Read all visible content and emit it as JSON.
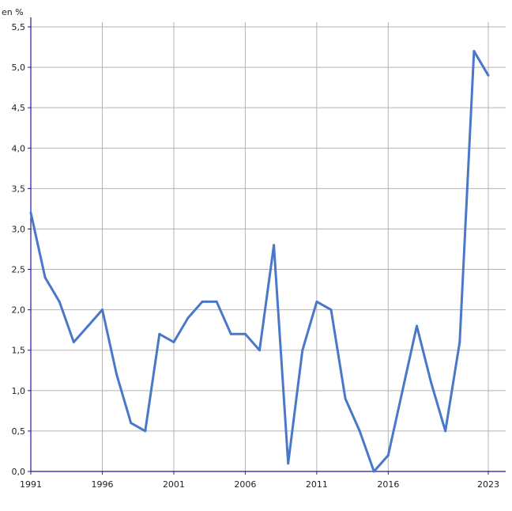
{
  "chart_data": {
    "type": "line",
    "ylabel": "en %",
    "x": [
      1991,
      1992,
      1993,
      1994,
      1995,
      1996,
      1997,
      1998,
      1999,
      2000,
      2001,
      2002,
      2003,
      2004,
      2005,
      2006,
      2007,
      2008,
      2009,
      2010,
      2011,
      2012,
      2013,
      2014,
      2015,
      2016,
      2017,
      2018,
      2019,
      2020,
      2021,
      2022,
      2023
    ],
    "series": [
      {
        "name": "",
        "color": "#4a78c8",
        "values": [
          3.2,
          2.4,
          2.1,
          1.6,
          1.8,
          2.0,
          1.2,
          0.6,
          0.5,
          1.7,
          1.6,
          1.9,
          2.1,
          2.1,
          1.7,
          1.7,
          1.5,
          2.8,
          0.1,
          1.5,
          2.1,
          2.0,
          0.9,
          0.5,
          0.0,
          0.2,
          1.0,
          1.8,
          1.1,
          0.5,
          1.6,
          5.2,
          4.9
        ]
      }
    ],
    "xticks": [
      1991,
      1996,
      2001,
      2006,
      2011,
      2016,
      2023
    ],
    "xtick_labels": [
      "1991",
      "1996",
      "2001",
      "2006",
      "2011",
      "2016",
      "2023"
    ],
    "yticks": [
      0,
      0.5,
      1,
      1.5,
      2,
      2.5,
      3,
      3.5,
      4,
      4.5,
      5,
      5.5
    ],
    "ytick_labels": [
      "0,0",
      "0,5",
      "1,0",
      "1,5",
      "2,0",
      "2,5",
      "3,0",
      "3,5",
      "4,0",
      "4,5",
      "5,0",
      "5,5"
    ],
    "xlim": [
      1991,
      2023
    ],
    "ylim": [
      0,
      5.5
    ],
    "grid": true,
    "axis_color": "#1a1a9a",
    "grid_color": "#b4b4b4"
  }
}
